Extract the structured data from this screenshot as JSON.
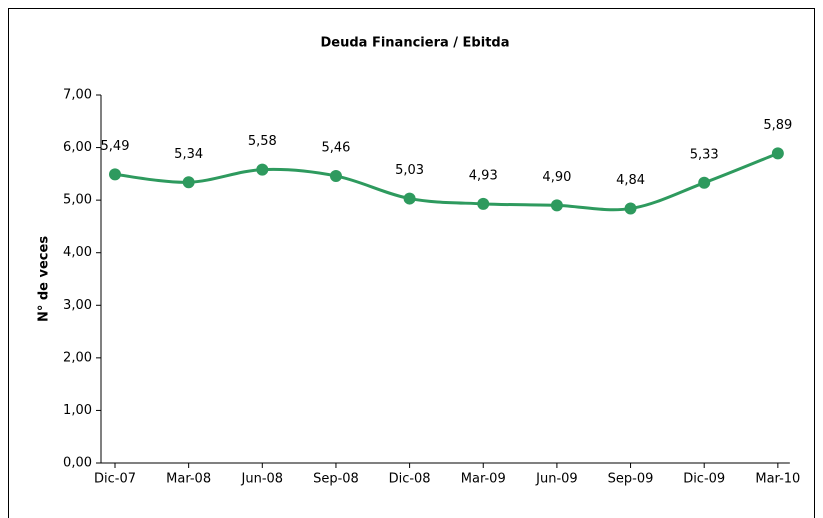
{
  "chart_data": {
    "type": "line",
    "title": "Deuda Financiera / Ebitda",
    "y_label": "N° de veces",
    "categories": [
      "Dic-07",
      "Mar-08",
      "Jun-08",
      "Sep-08",
      "Dic-08",
      "Mar-09",
      "Jun-09",
      "Sep-09",
      "Dic-09",
      "Mar-10"
    ],
    "series": [
      {
        "name": "Deuda Financiera / Ebitda",
        "color": "#2e9a5e",
        "values": [
          5.49,
          5.34,
          5.58,
          5.46,
          5.03,
          4.93,
          4.9,
          4.84,
          5.33,
          5.89
        ],
        "value_labels": [
          "5,49",
          "5,34",
          "5,58",
          "5,46",
          "5,03",
          "4,93",
          "4,90",
          "4,84",
          "5,33",
          "5,89"
        ]
      }
    ],
    "ylim": [
      0,
      7
    ],
    "yticks": [
      {
        "value": 0,
        "label": "0,00"
      },
      {
        "value": 1,
        "label": "1,00"
      },
      {
        "value": 2,
        "label": "2,00"
      },
      {
        "value": 3,
        "label": "3,00"
      },
      {
        "value": 4,
        "label": "4,00"
      },
      {
        "value": 5,
        "label": "5,00"
      },
      {
        "value": 6,
        "label": "6,00"
      },
      {
        "value": 7,
        "label": "7,00"
      }
    ],
    "grid": false
  }
}
